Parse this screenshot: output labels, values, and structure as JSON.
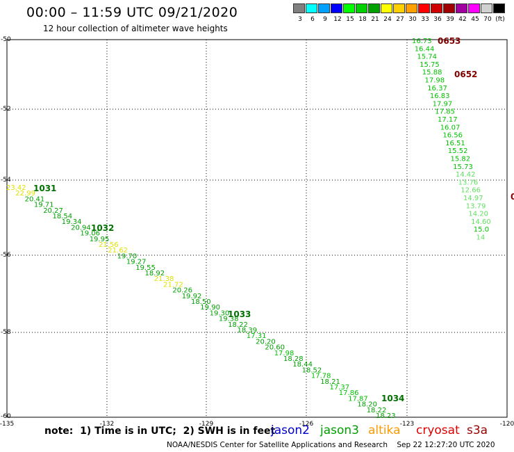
{
  "title": "00:00 – 11:59 UTC 09/21/2020",
  "subtitle": "12 hour collection of altimeter wave heights",
  "scale": {
    "colors": [
      "#808080",
      "#00ffff",
      "#00a0ff",
      "#0000ff",
      "#00ff00",
      "#00d000",
      "#00a000",
      "#ffff00",
      "#ffd000",
      "#ffa000",
      "#ff0000",
      "#d00000",
      "#a00000",
      "#a000a0",
      "#ff00ff",
      "#d0d0d0",
      "#000000"
    ],
    "labels": [
      "3",
      "6",
      "9",
      "12",
      "15",
      "18",
      "21",
      "24",
      "27",
      "30",
      "33",
      "36",
      "39",
      "42",
      "45",
      "70",
      "(ft)"
    ]
  },
  "axis": {
    "x_ticks": [
      "-135",
      "-132",
      "-129",
      "-126",
      "-123",
      "-120"
    ],
    "y_ticks": [
      "-50",
      "-52",
      "-54",
      "-56",
      "-58",
      "-60"
    ]
  },
  "passes": [
    {
      "id": "1031"
    },
    {
      "id": "1032"
    },
    {
      "id": "1033"
    },
    {
      "id": "1034"
    },
    {
      "id": "0653"
    },
    {
      "id": "0652"
    },
    {
      "id": "0"
    }
  ],
  "track_a": [
    "23.42",
    "22.99",
    "20.41",
    "19.71",
    "20.27",
    "18.54",
    "19.34",
    "20.94",
    "19.06",
    "19.95",
    "21.56",
    "21.62",
    "19.70",
    "19.27",
    "19.55",
    "18.92",
    "21.38",
    "21.72",
    "20.26",
    "19.92",
    "18.50",
    "19.90",
    "19.30",
    "19.38",
    "18.22",
    "18.39",
    "17.31",
    "20.20",
    "20.60",
    "17.98",
    "18.28",
    "18.44",
    "18.52",
    "17.78",
    "18.21",
    "17.37",
    "17.86",
    "17.87",
    "18.20",
    "18.22",
    "18.23"
  ],
  "track_b": [
    "16.73",
    "16.44",
    "15.74",
    "15.75",
    "15.88",
    "17.98",
    "16.37",
    "16.83",
    "17.97",
    "17.85",
    "17.17",
    "16.07",
    "16.56",
    "16.51",
    "15.52",
    "15.82",
    "15.73",
    "14.42",
    "13.76",
    "12.66",
    "14.97",
    "13.79",
    "14.20",
    "14.60",
    "15.0",
    "14"
  ],
  "note": "note:  1) Time is in UTC;  2) SWH is in feet",
  "satellites": [
    {
      "name": "jason2",
      "color": "#0000cc"
    },
    {
      "name": "jason3",
      "color": "#00a000"
    },
    {
      "name": "altika",
      "color": "#ff9900"
    },
    {
      "name": "cryosat",
      "color": "#dd0000"
    },
    {
      "name": "s3a",
      "color": "#990000"
    }
  ],
  "credit": "NOAA/NESDIS Center for Satellite Applications and Research    Sep 22 12:27:20 UTC 2020"
}
